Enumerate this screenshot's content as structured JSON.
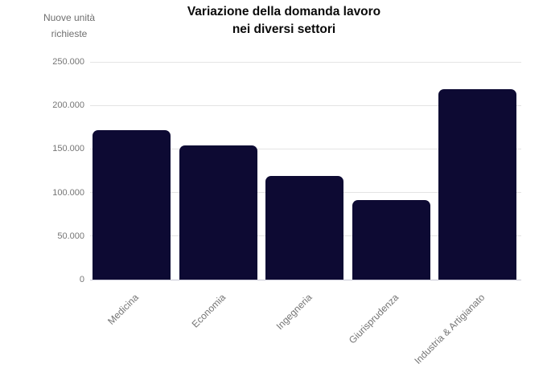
{
  "chart_data": {
    "type": "bar",
    "title": "Variazione della domanda lavoro nei diversi settori",
    "title_lines": [
      "Variazione della domanda lavoro",
      "nei diversi settori"
    ],
    "ylabel": "Nuove unità richieste",
    "ylabel_lines": [
      "Nuove unità",
      "richieste"
    ],
    "categories": [
      "Medicina",
      "Economia",
      "Ingegneria",
      "Giurisprudenza",
      "Industria & Artigianato"
    ],
    "values": [
      172000,
      154000,
      119000,
      91000,
      219000
    ],
    "ylim": [
      0,
      250000
    ],
    "ytick_interval": 50000,
    "ytick_labels": [
      "0",
      "50.000",
      "100.000",
      "150.000",
      "200.000",
      "250.000"
    ],
    "grid": true,
    "legend": "none",
    "xlabel_rotation_deg": -45
  },
  "colors": {
    "bar": "#0d0a33",
    "title": "#0a0a0a",
    "axis_text": "#757575",
    "unit_text": "#6f6f6f",
    "gridline": "#e4e4e4",
    "baseline": "#c9c9d6",
    "background": "#ffffff"
  }
}
